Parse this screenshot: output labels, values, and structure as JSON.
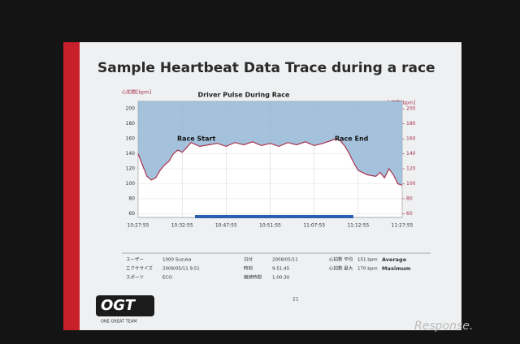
{
  "slide": {
    "title": "Sample Heartbeat Data Trace during a race",
    "page": "21",
    "logo": "OGT",
    "tagline": "ONE GREAT TEAM",
    "watermark": "Response."
  },
  "chart_data": {
    "type": "line",
    "title": "Driver Pulse During Race",
    "y_label": "心拍数[bpm]",
    "y2_label": "心拍数[bpm]",
    "annotations": [
      "Race Start",
      "Race End"
    ],
    "x": [
      0,
      0.1,
      0.2,
      0.3,
      0.4,
      0.5,
      0.6,
      0.7,
      0.8,
      0.9,
      1.0,
      1.1,
      1.2,
      1.4,
      1.6,
      1.8,
      2.0,
      2.2,
      2.4,
      2.6,
      2.8,
      3.0,
      3.2,
      3.4,
      3.6,
      3.8,
      4.0,
      4.2,
      4.4,
      4.5,
      4.6,
      4.7,
      4.8,
      4.9,
      5.0,
      5.2,
      5.4,
      5.5,
      5.6,
      5.7,
      5.8,
      5.9,
      6.0
    ],
    "values": [
      140,
      125,
      110,
      105,
      108,
      118,
      125,
      130,
      140,
      145,
      142,
      148,
      155,
      150,
      152,
      154,
      150,
      155,
      152,
      156,
      151,
      154,
      150,
      155,
      152,
      156,
      151,
      154,
      158,
      160,
      157,
      150,
      140,
      128,
      118,
      112,
      110,
      115,
      108,
      120,
      112,
      100,
      98
    ],
    "color": "#a8324e",
    "area_color": "#8fb3d5",
    "xlim": [
      0,
      6
    ],
    "xticks": [
      {
        "value": 0,
        "label": "10:27:55"
      },
      {
        "value": 1,
        "label": "10:32:55"
      },
      {
        "value": 2,
        "label": "10:47:55"
      },
      {
        "value": 3,
        "label": "10:51:55"
      },
      {
        "value": 4,
        "label": "11:07:55"
      },
      {
        "value": 5,
        "label": "11:12:55"
      },
      {
        "value": 6,
        "label": "11:27:55"
      }
    ],
    "ylim": [
      55,
      210
    ],
    "yticks": [
      60,
      80,
      100,
      120,
      140,
      160,
      180,
      200
    ],
    "y2lim": [
      55,
      210
    ],
    "y2ticks": [
      60,
      80,
      100,
      120,
      140,
      160,
      180,
      200
    ],
    "grid": true
  },
  "info_table": {
    "rows": [
      [
        "ユーザー",
        "1000 Suzuka",
        "日付",
        "2008/05/11",
        "心拍数 平均",
        "151 bpm",
        "Average"
      ],
      [
        "エクササイズ",
        "2008/05/11 9:51",
        "時刻",
        "9:51:45",
        "心拍数 最大",
        "170 bpm",
        "Maximum"
      ],
      [
        "スポーツ",
        "ECO",
        "継続時間",
        "1:00:30",
        "",
        "",
        ""
      ]
    ]
  }
}
